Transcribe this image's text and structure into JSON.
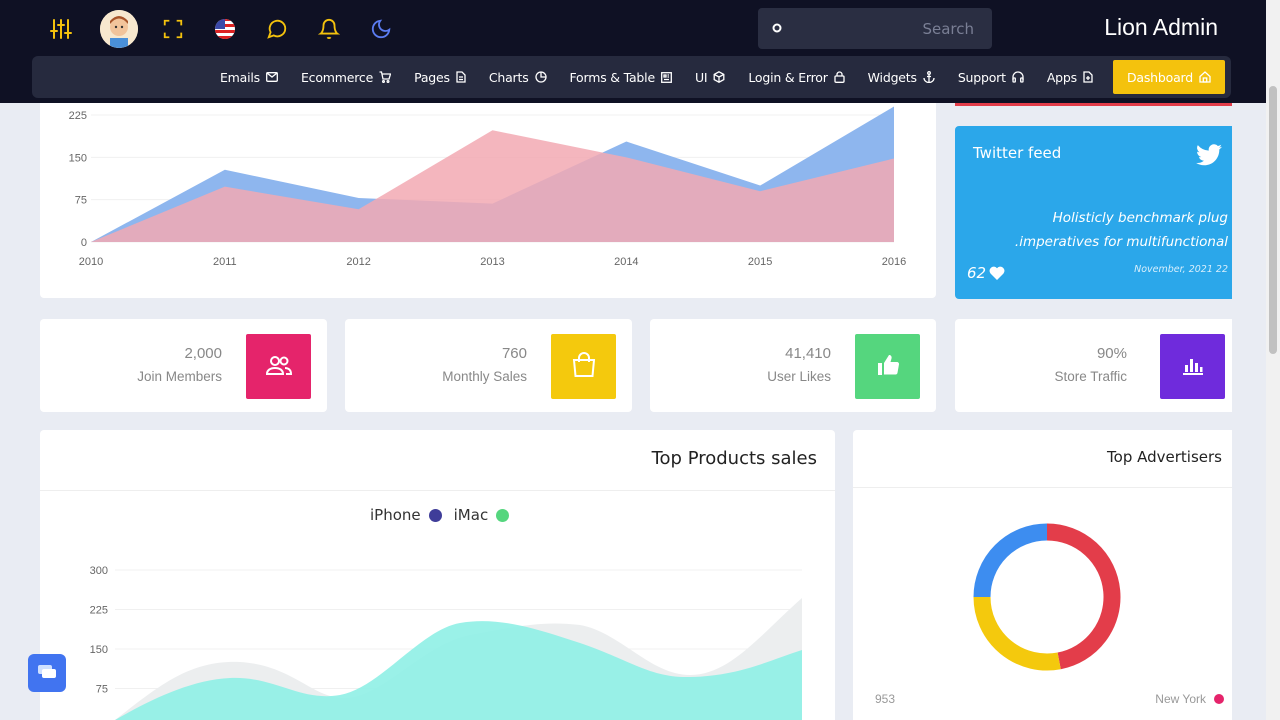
{
  "app": {
    "brand": "Lion Admin"
  },
  "search": {
    "placeholder": "Search"
  },
  "nav": {
    "items": [
      {
        "label": "Emails",
        "icon": "mail-icon"
      },
      {
        "label": "Ecommerce",
        "icon": "cart-icon"
      },
      {
        "label": "Pages",
        "icon": "file-icon"
      },
      {
        "label": "Charts",
        "icon": "pie-icon"
      },
      {
        "label": "Forms & Table",
        "icon": "table-icon"
      },
      {
        "label": "UI",
        "icon": "cube-icon"
      },
      {
        "label": "Login & Error",
        "icon": "lock-icon"
      },
      {
        "label": "Widgets",
        "icon": "anchor-icon"
      },
      {
        "label": "Support",
        "icon": "headphones-icon"
      },
      {
        "label": "Apps",
        "icon": "file-icon"
      },
      {
        "label": "Dashboard",
        "icon": "home-icon",
        "active": true
      }
    ]
  },
  "top_icons": [
    "sliders-icon",
    "avatar",
    "fullscreen-icon",
    "us-flag-icon",
    "chat-bubble-icon",
    "bell-icon",
    "moon-icon"
  ],
  "twitter": {
    "title": "Twitter feed",
    "text_line1": "Holisticly benchmark plug",
    "text_line2": ".imperatives for multifunctional",
    "likes": "62",
    "date": "November, 2021 22"
  },
  "stats": [
    {
      "number": "2,000",
      "label": "Join Members",
      "color": "#e5246b",
      "icon": "users-icon"
    },
    {
      "number": "760",
      "label": "Monthly Sales",
      "color": "#f4c90d",
      "icon": "shopping-bag-icon"
    },
    {
      "number": "41,410",
      "label": "User Likes",
      "color": "#55d67e",
      "icon": "thumbs-up-icon"
    },
    {
      "number": "90%",
      "label": "Store Traffic",
      "color": "#6f2bdc",
      "icon": "bar-chart-icon"
    }
  ],
  "products": {
    "title": "Top Products sales"
  },
  "advertisers": {
    "title": "Top Advertisers",
    "footer_value": "953",
    "footer_label": "New York"
  },
  "chart_data": [
    {
      "type": "area",
      "x": [
        "2010",
        "2011",
        "2012",
        "2013",
        "2014",
        "2015",
        "2016"
      ],
      "y_ticks": [
        "0",
        "75",
        "150",
        "225"
      ],
      "series": [
        {
          "values": [
            0,
            128,
            78,
            68,
            178,
            100,
            240
          ],
          "color": "#8eb6ee"
        },
        {
          "values": [
            0,
            98,
            58,
            198,
            150,
            90,
            148
          ],
          "color": "#f2a9b3"
        }
      ]
    },
    {
      "type": "area",
      "y_ticks": [
        "75",
        "150",
        "225",
        "300"
      ],
      "series": [
        {
          "name": "iPhone",
          "color": "#3f3d99"
        },
        {
          "name": "iMac",
          "color": "#55d67e"
        }
      ]
    },
    {
      "type": "pie",
      "slices": [
        {
          "value": 47,
          "color": "#e33d4a"
        },
        {
          "value": 28,
          "color": "#f4c90d"
        },
        {
          "value": 25,
          "color": "#3d8df0"
        }
      ]
    }
  ]
}
